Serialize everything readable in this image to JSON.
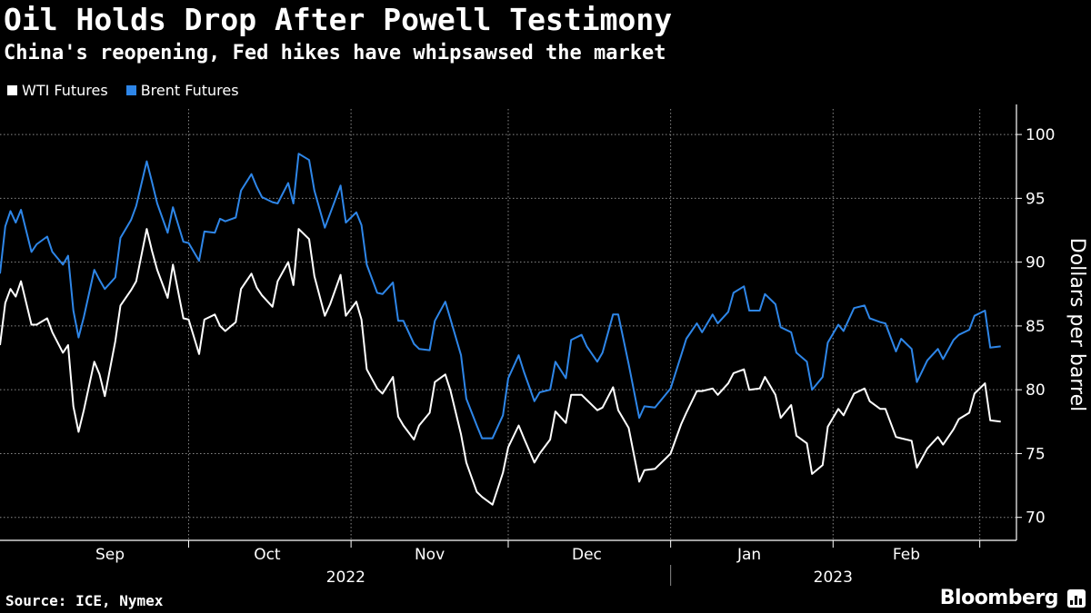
{
  "header": {
    "title": "Oil Holds Drop After Powell Testimony",
    "subtitle": "China's reopening, Fed hikes have whipsawsed the market"
  },
  "legend": [
    {
      "label": "WTI Futures",
      "color": "#ffffff"
    },
    {
      "label": "Brent Futures",
      "color": "#2e86e8"
    }
  ],
  "footer": {
    "source": "Source: ICE, Nymex",
    "brand": "Bloomberg"
  },
  "chart_data": {
    "type": "line",
    "title": "Oil Holds Drop After Powell Testimony",
    "subtitle": "China's reopening, Fed hikes have whipsawsed the market",
    "ylabel": "Dollars per barrel",
    "ylim": [
      68.2,
      102
    ],
    "yticks": [
      70,
      75,
      80,
      85,
      90,
      95,
      100
    ],
    "x_start": "2022-08-26",
    "x_end": "2023-03-08",
    "month_labels": [
      {
        "label": "Sep",
        "date": "2022-09-16"
      },
      {
        "label": "Oct",
        "date": "2022-10-16"
      },
      {
        "label": "Nov",
        "date": "2022-11-16"
      },
      {
        "label": "Dec",
        "date": "2022-12-16"
      },
      {
        "label": "Jan",
        "date": "2023-01-16"
      },
      {
        "label": "Feb",
        "date": "2023-02-15"
      }
    ],
    "month_boundaries": [
      "2022-10-01",
      "2022-11-01",
      "2022-12-01",
      "2023-01-01",
      "2023-02-01",
      "2023-03-01"
    ],
    "year_labels": [
      {
        "label": "2022",
        "date": "2022-10-31"
      },
      {
        "label": "2023",
        "date": "2023-02-01"
      }
    ],
    "year_divider": "2023-01-01",
    "series": [
      {
        "name": "WTI Futures",
        "color": "#ffffff",
        "values": [
          [
            "2022-08-26",
            83.5
          ],
          [
            "2022-08-27",
            86.8
          ],
          [
            "2022-08-28",
            87.9
          ],
          [
            "2022-08-29",
            87.3
          ],
          [
            "2022-08-30",
            88.5
          ],
          [
            "2022-09-01",
            85.1
          ],
          [
            "2022-09-02",
            85.1
          ],
          [
            "2022-09-04",
            85.6
          ],
          [
            "2022-09-05",
            84.5
          ],
          [
            "2022-09-07",
            82.9
          ],
          [
            "2022-09-08",
            83.5
          ],
          [
            "2022-09-09",
            78.7
          ],
          [
            "2022-09-10",
            76.7
          ],
          [
            "2022-09-11",
            78.4
          ],
          [
            "2022-09-13",
            82.2
          ],
          [
            "2022-09-14",
            81.2
          ],
          [
            "2022-09-15",
            79.5
          ],
          [
            "2022-09-17",
            83.8
          ],
          [
            "2022-09-18",
            86.6
          ],
          [
            "2022-09-20",
            87.8
          ],
          [
            "2022-09-21",
            88.5
          ],
          [
            "2022-09-23",
            92.6
          ],
          [
            "2022-09-24",
            90.9
          ],
          [
            "2022-09-25",
            89.4
          ],
          [
            "2022-09-27",
            87.2
          ],
          [
            "2022-09-28",
            89.8
          ],
          [
            "2022-09-30",
            85.6
          ],
          [
            "2022-10-01",
            85.5
          ],
          [
            "2022-10-03",
            82.8
          ],
          [
            "2022-10-04",
            85.5
          ],
          [
            "2022-10-06",
            85.9
          ],
          [
            "2022-10-07",
            85.0
          ],
          [
            "2022-10-08",
            84.6
          ],
          [
            "2022-10-10",
            85.3
          ],
          [
            "2022-10-11",
            87.9
          ],
          [
            "2022-10-13",
            89.1
          ],
          [
            "2022-10-14",
            88.0
          ],
          [
            "2022-10-15",
            87.4
          ],
          [
            "2022-10-17",
            86.5
          ],
          [
            "2022-10-18",
            88.5
          ],
          [
            "2022-10-20",
            90.0
          ],
          [
            "2022-10-21",
            88.2
          ],
          [
            "2022-10-22",
            92.6
          ],
          [
            "2022-10-24",
            91.8
          ],
          [
            "2022-10-25",
            88.9
          ],
          [
            "2022-10-27",
            85.8
          ],
          [
            "2022-10-28",
            86.7
          ],
          [
            "2022-10-30",
            89.0
          ],
          [
            "2022-10-31",
            85.8
          ],
          [
            "2022-11-02",
            86.9
          ],
          [
            "2022-11-03",
            85.5
          ],
          [
            "2022-11-04",
            81.6
          ],
          [
            "2022-11-06",
            80.1
          ],
          [
            "2022-11-07",
            79.7
          ],
          [
            "2022-11-09",
            81.0
          ],
          [
            "2022-11-10",
            77.9
          ],
          [
            "2022-11-11",
            77.2
          ],
          [
            "2022-11-13",
            76.1
          ],
          [
            "2022-11-14",
            77.2
          ],
          [
            "2022-11-16",
            78.2
          ],
          [
            "2022-11-17",
            80.6
          ],
          [
            "2022-11-19",
            81.2
          ],
          [
            "2022-11-20",
            79.9
          ],
          [
            "2022-11-22",
            76.5
          ],
          [
            "2022-11-23",
            74.3
          ],
          [
            "2022-11-25",
            72.0
          ],
          [
            "2022-11-26",
            71.6
          ],
          [
            "2022-11-28",
            71.0
          ],
          [
            "2022-11-30",
            73.5
          ],
          [
            "2022-12-01",
            75.5
          ],
          [
            "2022-12-03",
            77.2
          ],
          [
            "2022-12-04",
            76.2
          ],
          [
            "2022-12-06",
            74.3
          ],
          [
            "2022-12-07",
            75.0
          ],
          [
            "2022-12-09",
            76.1
          ],
          [
            "2022-12-10",
            78.3
          ],
          [
            "2022-12-12",
            77.4
          ],
          [
            "2022-12-13",
            79.6
          ],
          [
            "2022-12-15",
            79.6
          ],
          [
            "2022-12-16",
            79.2
          ],
          [
            "2022-12-18",
            78.4
          ],
          [
            "2022-12-19",
            78.6
          ],
          [
            "2022-12-21",
            80.2
          ],
          [
            "2022-12-22",
            78.4
          ],
          [
            "2022-12-24",
            77.0
          ],
          [
            "2022-12-26",
            72.8
          ],
          [
            "2022-12-27",
            73.7
          ],
          [
            "2022-12-29",
            73.8
          ],
          [
            "2022-12-31",
            74.6
          ],
          [
            "2023-01-01",
            75.0
          ],
          [
            "2023-01-03",
            77.3
          ],
          [
            "2023-01-04",
            78.2
          ],
          [
            "2023-01-06",
            79.9
          ],
          [
            "2023-01-07",
            79.9
          ],
          [
            "2023-01-09",
            80.1
          ],
          [
            "2023-01-10",
            79.6
          ],
          [
            "2023-01-12",
            80.5
          ],
          [
            "2023-01-13",
            81.3
          ],
          [
            "2023-01-15",
            81.6
          ],
          [
            "2023-01-16",
            80.0
          ],
          [
            "2023-01-18",
            80.1
          ],
          [
            "2023-01-19",
            81.0
          ],
          [
            "2023-01-21",
            79.6
          ],
          [
            "2023-01-22",
            77.8
          ],
          [
            "2023-01-24",
            78.8
          ],
          [
            "2023-01-25",
            76.4
          ],
          [
            "2023-01-27",
            75.8
          ],
          [
            "2023-01-28",
            73.4
          ],
          [
            "2023-01-30",
            74.1
          ],
          [
            "2023-01-31",
            77.1
          ],
          [
            "2023-02-02",
            78.5
          ],
          [
            "2023-02-03",
            78.0
          ],
          [
            "2023-02-05",
            79.7
          ],
          [
            "2023-02-07",
            80.1
          ],
          [
            "2023-02-08",
            79.1
          ],
          [
            "2023-02-10",
            78.5
          ],
          [
            "2023-02-11",
            78.5
          ],
          [
            "2023-02-13",
            76.3
          ],
          [
            "2023-02-14",
            76.2
          ],
          [
            "2023-02-16",
            76.0
          ],
          [
            "2023-02-17",
            73.9
          ],
          [
            "2023-02-19",
            75.4
          ],
          [
            "2023-02-21",
            76.3
          ],
          [
            "2023-02-22",
            75.7
          ],
          [
            "2023-02-24",
            76.9
          ],
          [
            "2023-02-25",
            77.7
          ],
          [
            "2023-02-27",
            78.2
          ],
          [
            "2023-02-28",
            79.7
          ],
          [
            "2023-03-02",
            80.5
          ],
          [
            "2023-03-03",
            77.6
          ],
          [
            "2023-03-05",
            77.5
          ]
        ]
      },
      {
        "name": "Brent Futures",
        "color": "#2e86e8",
        "values": [
          [
            "2022-08-26",
            89.1
          ],
          [
            "2022-08-27",
            92.8
          ],
          [
            "2022-08-28",
            94.0
          ],
          [
            "2022-08-29",
            93.1
          ],
          [
            "2022-08-30",
            94.1
          ],
          [
            "2022-09-01",
            90.8
          ],
          [
            "2022-09-02",
            91.4
          ],
          [
            "2022-09-04",
            92.0
          ],
          [
            "2022-09-05",
            90.8
          ],
          [
            "2022-09-07",
            89.8
          ],
          [
            "2022-09-08",
            90.5
          ],
          [
            "2022-09-09",
            86.2
          ],
          [
            "2022-09-10",
            84.1
          ],
          [
            "2022-09-11",
            85.7
          ],
          [
            "2022-09-13",
            89.4
          ],
          [
            "2022-09-14",
            88.6
          ],
          [
            "2022-09-15",
            87.9
          ],
          [
            "2022-09-17",
            88.8
          ],
          [
            "2022-09-18",
            91.9
          ],
          [
            "2022-09-20",
            93.3
          ],
          [
            "2022-09-21",
            94.4
          ],
          [
            "2022-09-23",
            97.9
          ],
          [
            "2022-09-24",
            96.3
          ],
          [
            "2022-09-25",
            94.6
          ],
          [
            "2022-09-27",
            92.3
          ],
          [
            "2022-09-28",
            94.3
          ],
          [
            "2022-09-30",
            91.6
          ],
          [
            "2022-10-01",
            91.5
          ],
          [
            "2022-10-03",
            90.1
          ],
          [
            "2022-10-04",
            92.4
          ],
          [
            "2022-10-06",
            92.3
          ],
          [
            "2022-10-07",
            93.4
          ],
          [
            "2022-10-08",
            93.2
          ],
          [
            "2022-10-10",
            93.5
          ],
          [
            "2022-10-11",
            95.6
          ],
          [
            "2022-10-13",
            96.9
          ],
          [
            "2022-10-14",
            95.9
          ],
          [
            "2022-10-15",
            95.1
          ],
          [
            "2022-10-17",
            94.7
          ],
          [
            "2022-10-18",
            94.6
          ],
          [
            "2022-10-20",
            96.2
          ],
          [
            "2022-10-21",
            94.6
          ],
          [
            "2022-10-22",
            98.5
          ],
          [
            "2022-10-24",
            98.0
          ],
          [
            "2022-10-25",
            95.6
          ],
          [
            "2022-10-27",
            92.7
          ],
          [
            "2022-10-28",
            93.8
          ],
          [
            "2022-10-30",
            96.0
          ],
          [
            "2022-10-31",
            93.1
          ],
          [
            "2022-11-02",
            93.9
          ],
          [
            "2022-11-03",
            92.9
          ],
          [
            "2022-11-04",
            89.8
          ],
          [
            "2022-11-06",
            87.6
          ],
          [
            "2022-11-07",
            87.5
          ],
          [
            "2022-11-09",
            88.4
          ],
          [
            "2022-11-10",
            85.4
          ],
          [
            "2022-11-11",
            85.4
          ],
          [
            "2022-11-13",
            83.6
          ],
          [
            "2022-11-14",
            83.2
          ],
          [
            "2022-11-16",
            83.1
          ],
          [
            "2022-11-17",
            85.4
          ],
          [
            "2022-11-19",
            86.9
          ],
          [
            "2022-11-20",
            85.5
          ],
          [
            "2022-11-22",
            82.7
          ],
          [
            "2022-11-23",
            79.3
          ],
          [
            "2022-11-25",
            77.2
          ],
          [
            "2022-11-26",
            76.2
          ],
          [
            "2022-11-28",
            76.2
          ],
          [
            "2022-11-30",
            78.0
          ],
          [
            "2022-12-01",
            80.9
          ],
          [
            "2022-12-03",
            82.7
          ],
          [
            "2022-12-04",
            81.4
          ],
          [
            "2022-12-06",
            79.1
          ],
          [
            "2022-12-07",
            79.8
          ],
          [
            "2022-12-09",
            80.0
          ],
          [
            "2022-12-10",
            82.2
          ],
          [
            "2022-12-12",
            80.9
          ],
          [
            "2022-12-13",
            83.9
          ],
          [
            "2022-12-15",
            84.3
          ],
          [
            "2022-12-16",
            83.4
          ],
          [
            "2022-12-18",
            82.2
          ],
          [
            "2022-12-19",
            82.9
          ],
          [
            "2022-12-21",
            85.9
          ],
          [
            "2022-12-22",
            85.9
          ],
          [
            "2022-12-24",
            82.0
          ],
          [
            "2022-12-26",
            77.8
          ],
          [
            "2022-12-27",
            78.7
          ],
          [
            "2022-12-29",
            78.6
          ],
          [
            "2022-12-31",
            79.6
          ],
          [
            "2023-01-01",
            80.1
          ],
          [
            "2023-01-03",
            82.7
          ],
          [
            "2023-01-04",
            84.0
          ],
          [
            "2023-01-06",
            85.2
          ],
          [
            "2023-01-07",
            84.5
          ],
          [
            "2023-01-09",
            85.9
          ],
          [
            "2023-01-10",
            85.2
          ],
          [
            "2023-01-12",
            86.1
          ],
          [
            "2023-01-13",
            87.6
          ],
          [
            "2023-01-15",
            88.1
          ],
          [
            "2023-01-16",
            86.2
          ],
          [
            "2023-01-18",
            86.2
          ],
          [
            "2023-01-19",
            87.5
          ],
          [
            "2023-01-21",
            86.7
          ],
          [
            "2023-01-22",
            84.9
          ],
          [
            "2023-01-24",
            84.5
          ],
          [
            "2023-01-25",
            82.9
          ],
          [
            "2023-01-27",
            82.2
          ],
          [
            "2023-01-28",
            80.0
          ],
          [
            "2023-01-30",
            81.0
          ],
          [
            "2023-01-31",
            83.7
          ],
          [
            "2023-02-02",
            85.1
          ],
          [
            "2023-02-03",
            84.6
          ],
          [
            "2023-02-05",
            86.4
          ],
          [
            "2023-02-07",
            86.6
          ],
          [
            "2023-02-08",
            85.6
          ],
          [
            "2023-02-10",
            85.3
          ],
          [
            "2023-02-11",
            85.2
          ],
          [
            "2023-02-13",
            83.0
          ],
          [
            "2023-02-14",
            84.0
          ],
          [
            "2023-02-16",
            83.2
          ],
          [
            "2023-02-17",
            80.6
          ],
          [
            "2023-02-19",
            82.3
          ],
          [
            "2023-02-21",
            83.2
          ],
          [
            "2023-02-22",
            82.4
          ],
          [
            "2023-02-24",
            83.9
          ],
          [
            "2023-02-25",
            84.3
          ],
          [
            "2023-02-27",
            84.7
          ],
          [
            "2023-02-28",
            85.8
          ],
          [
            "2023-03-02",
            86.2
          ],
          [
            "2023-03-03",
            83.3
          ],
          [
            "2023-03-05",
            83.4
          ]
        ]
      }
    ]
  }
}
